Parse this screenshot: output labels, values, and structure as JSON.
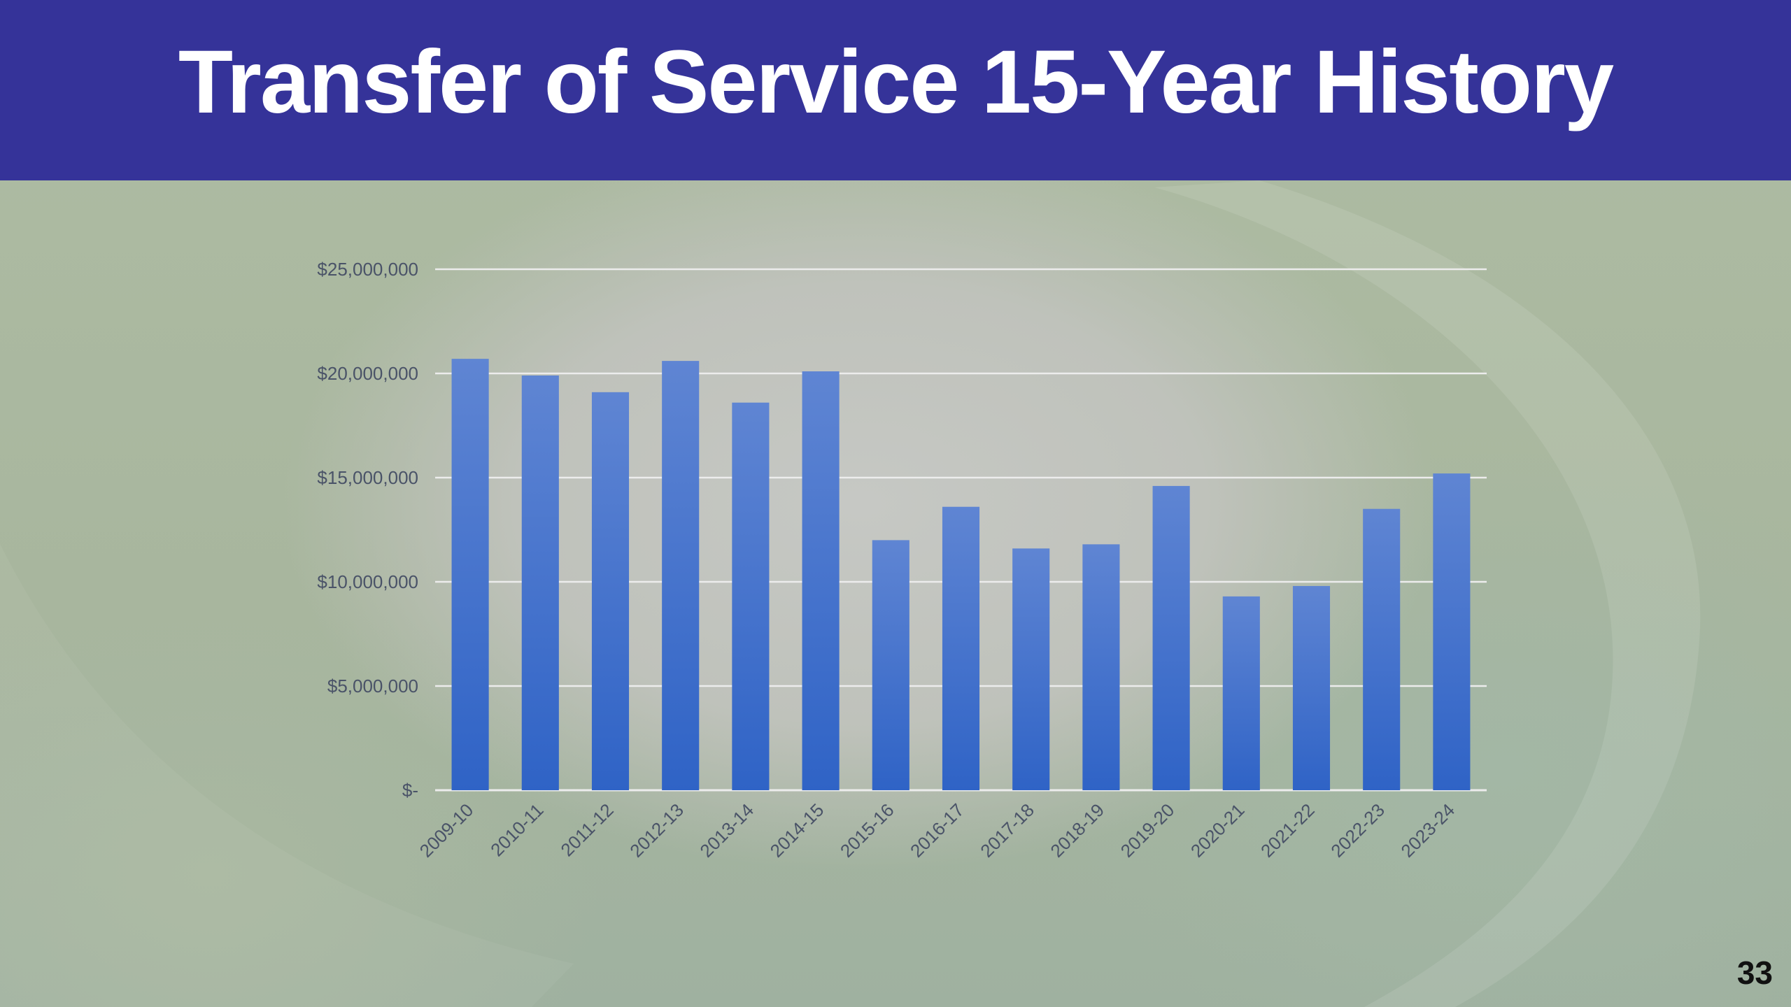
{
  "slide": {
    "title": "Transfer of Service 15-Year History",
    "page_number": "33"
  },
  "colors": {
    "header": "#353399",
    "bar_top": "#5f85d3",
    "bar_bottom": "#2f63c6",
    "grid": "#ececec",
    "axis_text": "#4a5368"
  },
  "chart_data": {
    "type": "bar",
    "title": "",
    "xlabel": "",
    "ylabel": "",
    "categories": [
      "2009-10",
      "2010-11",
      "2011-12",
      "2012-13",
      "2013-14",
      "2014-15",
      "2015-16",
      "2016-17",
      "2017-18",
      "2018-19",
      "2019-20",
      "2020-21",
      "2021-22",
      "2022-23",
      "2023-24"
    ],
    "values": [
      20700000,
      19900000,
      19100000,
      20600000,
      18600000,
      20100000,
      12000000,
      13600000,
      11600000,
      11800000,
      14600000,
      9300000,
      9800000,
      13500000,
      15200000
    ],
    "ylim": [
      0,
      25000000
    ],
    "yticks": [
      0,
      5000000,
      10000000,
      15000000,
      20000000,
      25000000
    ],
    "ytick_labels": [
      "$-",
      "$5,000,000",
      "$10,000,000",
      "$15,000,000",
      "$20,000,000",
      "$25,000,000"
    ],
    "grid": true,
    "legend": "none"
  }
}
